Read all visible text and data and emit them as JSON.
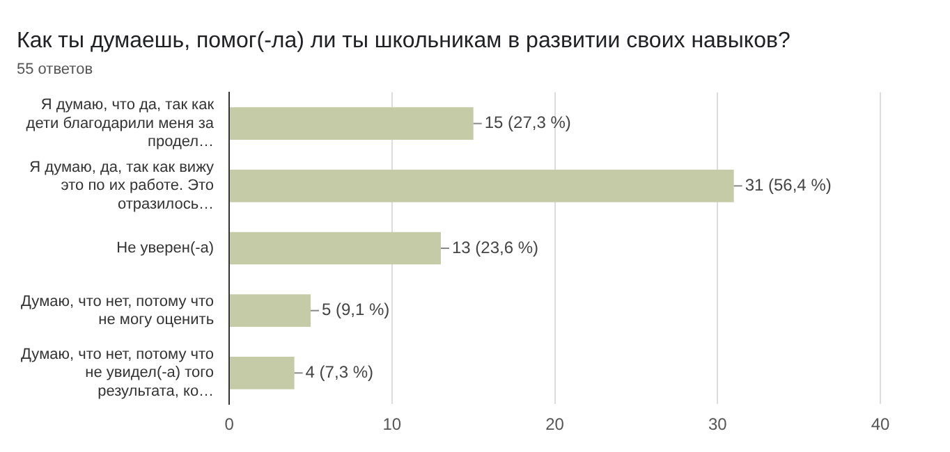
{
  "chart_data": {
    "type": "bar",
    "orientation": "horizontal",
    "title": "Как ты думаешь, помог(-ла) ли ты школьникам в развитии своих навыков?",
    "subtitle": "55 ответов",
    "categories": [
      "Я думаю, что да, так как дети благодарили меня за продел…",
      "Я думаю, да, так как вижу это по их работе. Это отразилось…",
      "Не уверен(-а)",
      "Думаю, что нет, потому что не могу оценить",
      "Думаю, что нет, потому что не увидел(-а) того результата, ко…"
    ],
    "values": [
      15,
      31,
      13,
      5,
      4
    ],
    "value_labels": [
      "15 (27,3 %)",
      "31 (56,4 %)",
      "13 (23,6 %)",
      "5 (9,1 %)",
      "4 (7,3 %)"
    ],
    "color": "#c5cba7",
    "xlim": [
      0,
      40
    ],
    "xticks": [
      0,
      10,
      20,
      30,
      40
    ],
    "grid": "x",
    "legend": false
  }
}
